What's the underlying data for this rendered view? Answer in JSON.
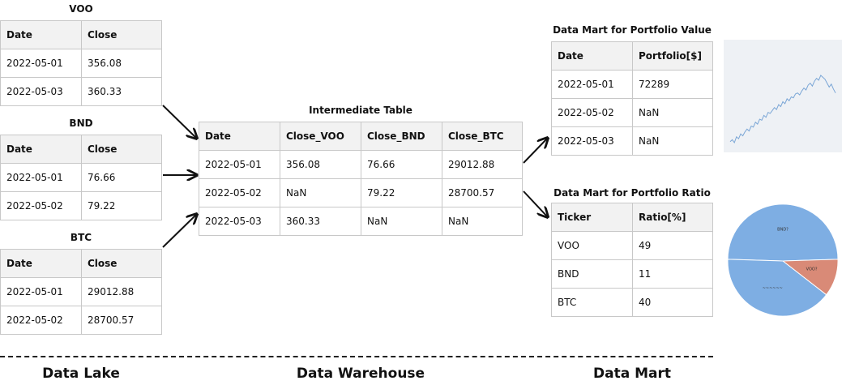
{
  "data_lake": {
    "label": "Data Lake",
    "tables": [
      {
        "title": "VOO",
        "headers": [
          "Date",
          "Close"
        ],
        "rows": [
          [
            "2022-05-01",
            "356.08"
          ],
          [
            "2022-05-03",
            "360.33"
          ]
        ]
      },
      {
        "title": "BND",
        "headers": [
          "Date",
          "Close"
        ],
        "rows": [
          [
            "2022-05-01",
            "76.66"
          ],
          [
            "2022-05-02",
            "79.22"
          ]
        ]
      },
      {
        "title": "BTC",
        "headers": [
          "Date",
          "Close"
        ],
        "rows": [
          [
            "2022-05-01",
            "29012.88"
          ],
          [
            "2022-05-02",
            "28700.57"
          ]
        ]
      }
    ]
  },
  "data_warehouse": {
    "label": "Data Warehouse",
    "table": {
      "title": "Intermediate Table",
      "headers": [
        "Date",
        "Close_VOO",
        "Close_BND",
        "Close_BTC"
      ],
      "rows": [
        [
          "2022-05-01",
          "356.08",
          "76.66",
          "29012.88"
        ],
        [
          "2022-05-02",
          "NaN",
          "79.22",
          "28700.57"
        ],
        [
          "2022-05-03",
          "360.33",
          "NaN",
          "NaN"
        ]
      ]
    }
  },
  "data_mart": {
    "label": "Data Mart",
    "value_table": {
      "title": "Data Mart for Portfolio Value",
      "headers": [
        "Date",
        "Portfolio[$]"
      ],
      "rows": [
        [
          "2022-05-01",
          "72289"
        ],
        [
          "2022-05-02",
          "NaN"
        ],
        [
          "2022-05-03",
          "NaN"
        ]
      ]
    },
    "ratio_table": {
      "title": "Data Mart for Portfolio Ratio",
      "headers": [
        "Ticker",
        "Ratio[%]"
      ],
      "rows": [
        [
          "VOO",
          "49"
        ],
        [
          "BND",
          "11"
        ],
        [
          "BTC",
          "40"
        ]
      ]
    }
  },
  "chart_data": [
    {
      "type": "line",
      "series": [
        {
          "values": [
            20,
            22,
            19,
            25,
            23,
            28,
            26,
            30,
            33,
            31,
            36,
            35,
            40,
            38,
            43,
            42,
            47,
            45,
            50,
            49,
            52,
            55,
            53,
            58,
            56,
            61,
            59,
            64,
            62,
            66,
            65,
            69,
            70,
            68,
            72,
            75,
            73,
            78,
            80,
            77,
            82,
            85,
            83,
            88,
            86,
            84,
            80,
            76,
            79,
            74,
            70
          ]
        }
      ],
      "colors": {
        "line": "#7aa6d6",
        "background": "#eef1f5"
      },
      "grid": false
    },
    {
      "type": "pie",
      "values": [
        49,
        11,
        40
      ],
      "slice_labels": [
        "BND?",
        "VOO?",
        "~~~~~~"
      ],
      "colors": [
        "#7eaee3",
        "#d98a77",
        "#7eaee3"
      ]
    }
  ]
}
